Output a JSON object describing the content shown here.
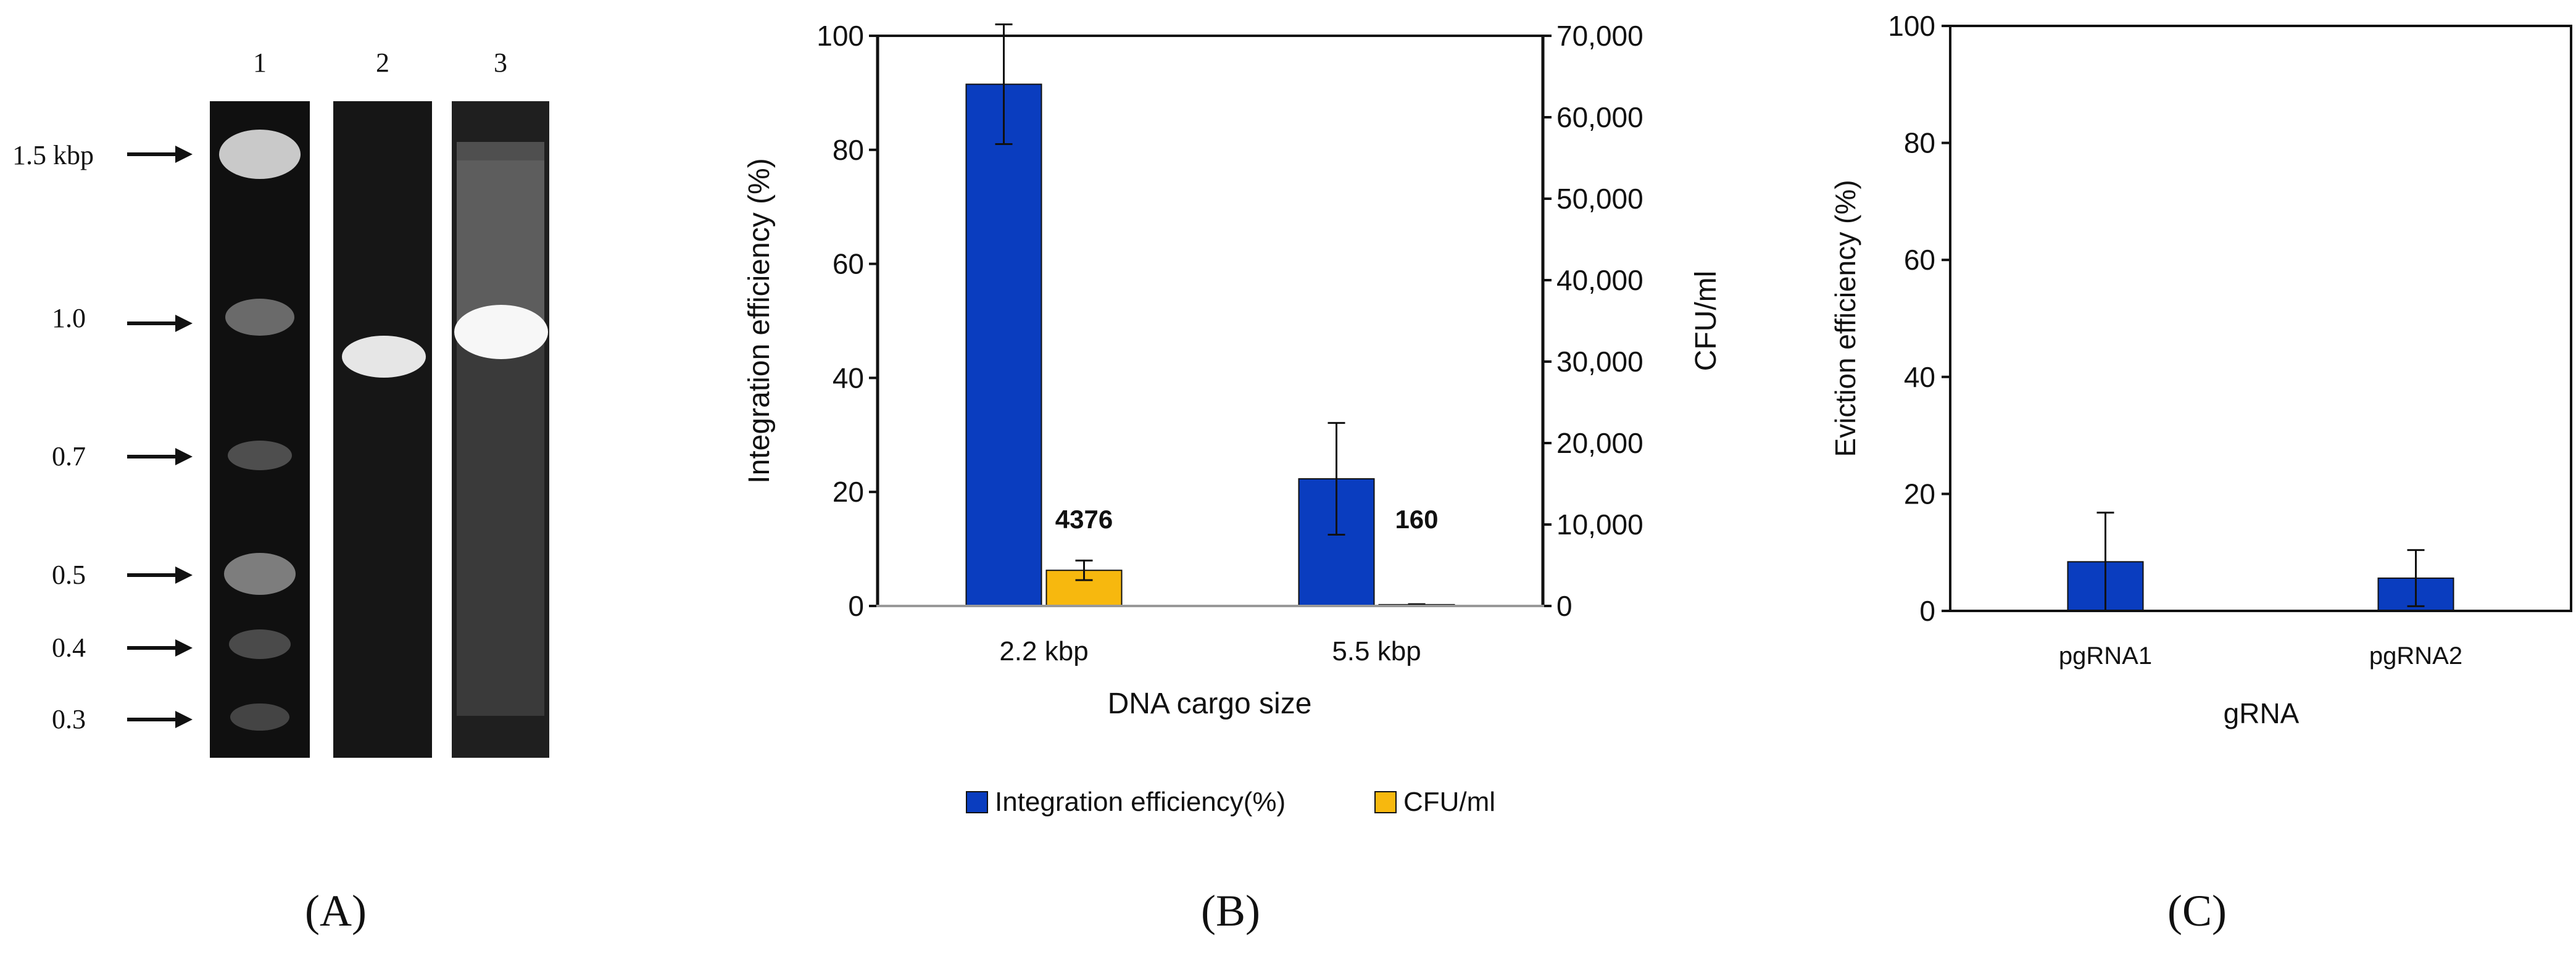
{
  "panels": {
    "a": {
      "label": "(A)",
      "lane_numbers": [
        "1",
        "2",
        "3"
      ],
      "ladder_labels": [
        "1.5 kbp",
        "1.0",
        "0.7",
        "0.5",
        "0.4",
        "0.3"
      ],
      "ladder_sizes_kbp": [
        1.5,
        1.0,
        0.7,
        0.5,
        0.4,
        0.3
      ]
    },
    "b": {
      "label": "(B)"
    },
    "c": {
      "label": "(C)"
    }
  },
  "chart_data": [
    {
      "type": "bar",
      "panel": "B",
      "categories": [
        "2.2 kbp",
        "5.5 kbp"
      ],
      "xlabel": "DNA cargo size",
      "ylabel": "Integration efficiency (%)",
      "y2label": "CFU/ml",
      "ylim": [
        0,
        100
      ],
      "y2lim": [
        0,
        70000
      ],
      "yticks": [
        "0",
        "20",
        "40",
        "60",
        "80",
        "100"
      ],
      "y2ticks": [
        "0",
        "10,000",
        "20,000",
        "30,000",
        "40,000",
        "50,000",
        "60,000",
        "70,000"
      ],
      "series": [
        {
          "name": "Integration efficiency(%)",
          "axis": "left",
          "color": "#0a3dbf",
          "values": [
            91.5,
            22.3
          ],
          "errors": [
            10.5,
            9.8
          ]
        },
        {
          "name": "CFU/ml",
          "axis": "right",
          "color": "#f7b80e",
          "values": [
            4376,
            160
          ],
          "errors": [
            1200,
            60
          ]
        }
      ],
      "data_labels": [
        "4376",
        "160"
      ],
      "legend": [
        "Integration efficiency(%)",
        "CFU/ml"
      ],
      "legend_position": "bottom"
    },
    {
      "type": "bar",
      "panel": "C",
      "categories": [
        "pgRNA1",
        "pgRNA2"
      ],
      "xlabel": "gRNA",
      "ylabel": "Eviction efficiency (%)",
      "ylim": [
        0,
        100
      ],
      "yticks": [
        "0",
        "20",
        "40",
        "60",
        "80",
        "100"
      ],
      "series": [
        {
          "name": "Eviction efficiency (%)",
          "color": "#0a3dbf",
          "values": [
            8.4,
            5.6
          ],
          "errors": [
            8.4,
            4.8
          ]
        }
      ]
    }
  ]
}
